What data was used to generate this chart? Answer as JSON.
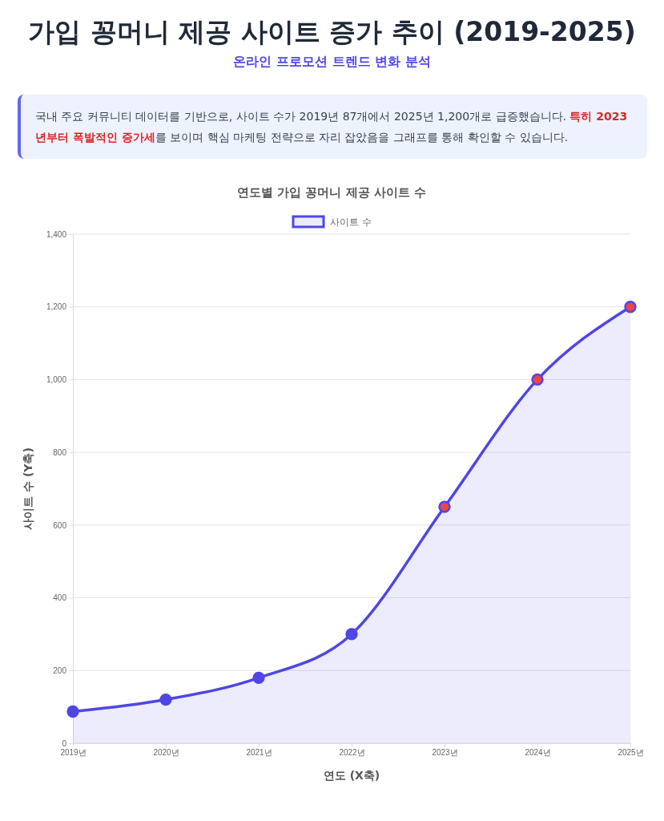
{
  "chart_data": {
    "type": "area",
    "title": "연도별 가입 꽁머니 제공 사이트 수",
    "annotations": [
      "가입 꽁머니 제공 사이트 증가 추이 (2019-2025)",
      "온라인 프로모션 트렌드 변화 분석",
      "국내 주요 커뮤니티 데이터를 기반으로, 사이트 수가 2019년 87개에서 2025년 1,200개로 급증했습니다. ",
      "특히 2023년부터 폭발적인 증가세",
      "를 보이며 핵심 마케팅 전략으로 자리 잡았음을 그래프를 통해 확인할 수 있습니다."
    ],
    "xlabel": "연도 (X축)",
    "ylabel": "사이트 수 (Y축)",
    "categories": [
      "2019년",
      "2020년",
      "2021년",
      "2022년",
      "2023년",
      "2024년",
      "2025년"
    ],
    "series": [
      {
        "name": "사이트 수",
        "color": "#4f46e5",
        "values": [
          87,
          120,
          180,
          300,
          650,
          1000,
          1200
        ],
        "colors": [
          "#4f46e5",
          "#4f46e5",
          "#4f46e5",
          "#4f46e5",
          "#ef4444",
          "#ef4444",
          "#ef4444"
        ]
      }
    ],
    "ylim": [
      0,
      1400
    ],
    "yticks": [
      0,
      200,
      400,
      600,
      800,
      {
        "value": 1000,
        "label": "1,000"
      },
      {
        "value": 1200,
        "label": "1,200"
      },
      {
        "value": 1400,
        "label": "1,400"
      }
    ],
    "grid": "y",
    "legend": "top",
    "marker": "circle"
  }
}
